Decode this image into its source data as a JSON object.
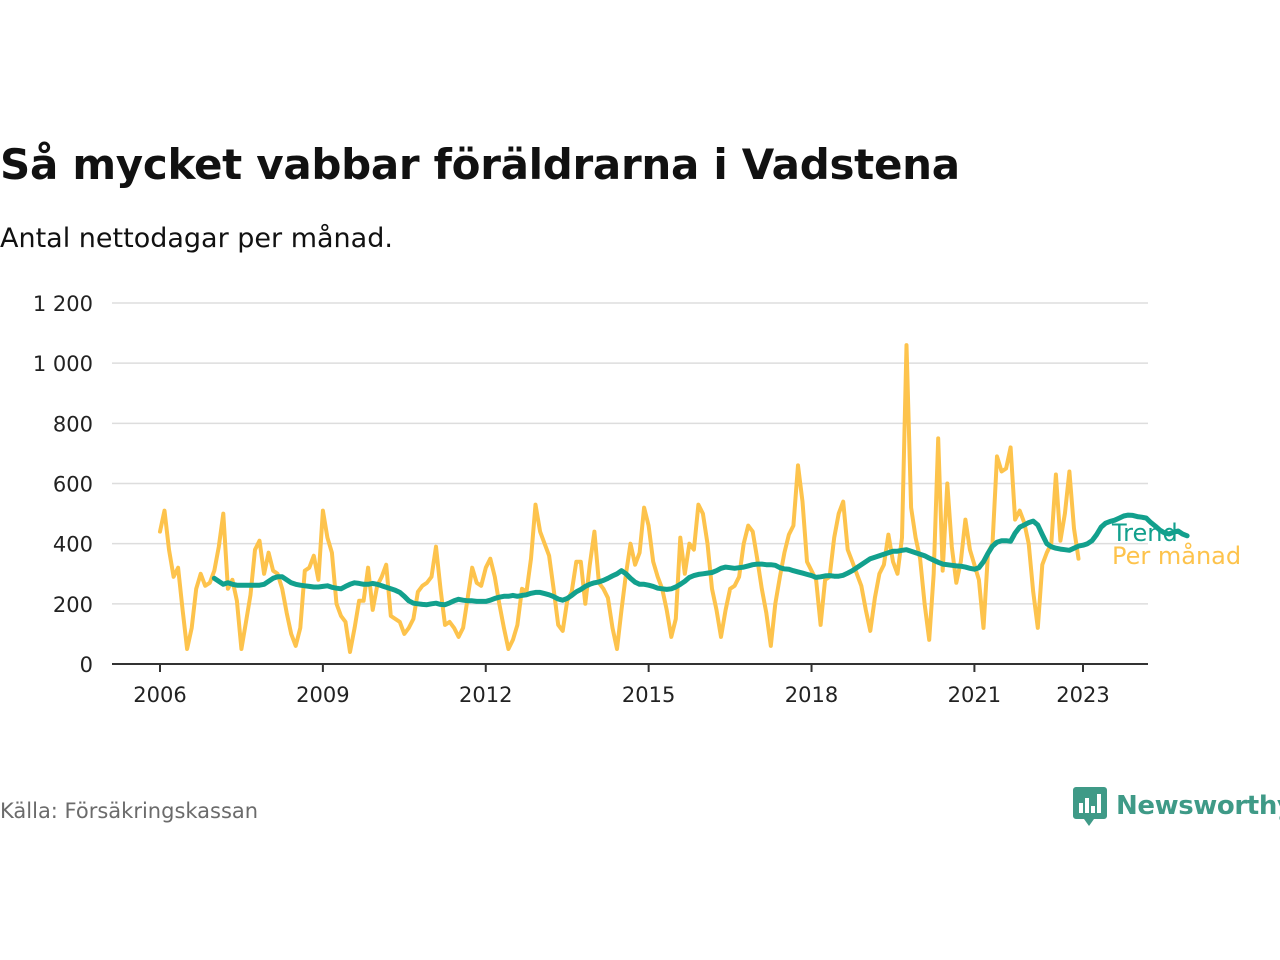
{
  "header": {
    "title": "Så mycket vabbar föräldrarna i Vadstena",
    "subtitle": "Antal nettodagar per månad."
  },
  "footer": {
    "source": "Källa: Försäkringskassan",
    "brand": "Newsworthy"
  },
  "colors": {
    "monthly": "#fdc34c",
    "trend": "#12a08d",
    "grid": "#dddddd",
    "axis": "#333333",
    "brand": "#3f9a87"
  },
  "icons": {
    "brand_logo": "bar-chart-speech-bubble-icon"
  },
  "chart_data": {
    "type": "line",
    "title": "Så mycket vabbar föräldrarna i Vadstena",
    "subtitle": "Antal nettodagar per månad.",
    "xlabel": "",
    "ylabel": "",
    "x_range": [
      2006,
      2023.75
    ],
    "ylim": [
      0,
      1200
    ],
    "y_ticks": [
      0,
      200,
      400,
      600,
      800,
      1000,
      1200
    ],
    "y_tick_labels": [
      "0",
      "200",
      "400",
      "600",
      "800",
      "1 000",
      "1 200"
    ],
    "x_ticks": [
      2006,
      2009,
      2012,
      2015,
      2018,
      2021,
      2023
    ],
    "x_tick_labels": [
      "2006",
      "2009",
      "2012",
      "2015",
      "2018",
      "2021",
      "2023"
    ],
    "grid": true,
    "legend": "inline labels at right end of lines",
    "series": [
      {
        "name": "Per månad",
        "color": "#fdc34c",
        "start": "2006-01",
        "frequency": "monthly",
        "values": [
          440,
          510,
          380,
          290,
          320,
          180,
          50,
          120,
          250,
          300,
          260,
          270,
          310,
          390,
          500,
          250,
          280,
          210,
          50,
          140,
          230,
          380,
          410,
          300,
          370,
          310,
          300,
          250,
          170,
          100,
          60,
          120,
          310,
          320,
          360,
          280,
          510,
          420,
          370,
          200,
          160,
          140,
          40,
          120,
          210,
          210,
          320,
          180,
          260,
          290,
          330,
          160,
          150,
          140,
          100,
          120,
          150,
          240,
          260,
          270,
          290,
          390,
          250,
          130,
          140,
          120,
          90,
          120,
          220,
          320,
          270,
          260,
          320,
          350,
          290,
          200,
          120,
          50,
          80,
          130,
          250,
          240,
          350,
          530,
          440,
          400,
          360,
          250,
          130,
          110,
          210,
          240,
          340,
          340,
          200,
          330,
          440,
          270,
          250,
          220,
          120,
          50,
          180,
          300,
          400,
          330,
          370,
          520,
          460,
          340,
          290,
          250,
          180,
          90,
          150,
          420,
          300,
          400,
          380,
          530,
          500,
          400,
          250,
          180,
          90,
          180,
          250,
          260,
          290,
          400,
          460,
          440,
          350,
          250,
          170,
          60,
          200,
          290,
          370,
          430,
          460,
          660,
          540,
          340,
          310,
          280,
          130,
          280,
          290,
          420,
          500,
          540,
          380,
          340,
          300,
          260,
          180,
          110,
          220,
          300,
          330,
          430,
          340,
          300,
          420,
          1060,
          520,
          420,
          350,
          200,
          80,
          300,
          750,
          310,
          600,
          390,
          270,
          340,
          480,
          380,
          330,
          280,
          120,
          370,
          400,
          690,
          640,
          650,
          720,
          480,
          510,
          470,
          400,
          240,
          120,
          330,
          370,
          400,
          630,
          410,
          500,
          640,
          450,
          350
        ]
      },
      {
        "name": "Trend",
        "color": "#12a08d",
        "start": "2007-01",
        "frequency": "monthly",
        "values": [
          285,
          275,
          265,
          270,
          265,
          262,
          262,
          262,
          262,
          262,
          262,
          265,
          275,
          285,
          290,
          290,
          280,
          270,
          265,
          262,
          260,
          258,
          256,
          256,
          258,
          260,
          255,
          252,
          250,
          258,
          265,
          270,
          268,
          265,
          265,
          268,
          265,
          260,
          255,
          250,
          245,
          238,
          225,
          210,
          202,
          200,
          198,
          197,
          200,
          202,
          198,
          197,
          203,
          210,
          215,
          212,
          210,
          210,
          208,
          208,
          208,
          212,
          218,
          222,
          225,
          225,
          228,
          225,
          228,
          230,
          235,
          238,
          238,
          234,
          230,
          224,
          216,
          212,
          218,
          228,
          240,
          248,
          258,
          265,
          270,
          273,
          278,
          285,
          293,
          300,
          310,
          300,
          285,
          272,
          265,
          265,
          262,
          258,
          252,
          250,
          248,
          250,
          256,
          265,
          275,
          288,
          294,
          298,
          300,
          302,
          304,
          310,
          318,
          322,
          320,
          318,
          320,
          322,
          326,
          330,
          332,
          332,
          330,
          330,
          328,
          320,
          316,
          315,
          310,
          306,
          302,
          298,
          294,
          288,
          290,
          293,
          294,
          292,
          292,
          295,
          302,
          310,
          320,
          330,
          340,
          350,
          355,
          360,
          365,
          370,
          375,
          375,
          378,
          380,
          375,
          370,
          365,
          360,
          352,
          345,
          338,
          332,
          330,
          328,
          326,
          325,
          322,
          318,
          315,
          320,
          340,
          368,
          392,
          405,
          410,
          410,
          408,
          435,
          455,
          462,
          470,
          475,
          462,
          430,
          400,
          390,
          385,
          382,
          380,
          378,
          385,
          392,
          395,
          400,
          410,
          430,
          455,
          468,
          474,
          478,
          485,
          492,
          495,
          494,
          490,
          488,
          485,
          470,
          458,
          445,
          436,
          432,
          438,
          442,
          432,
          426
        ]
      }
    ]
  }
}
